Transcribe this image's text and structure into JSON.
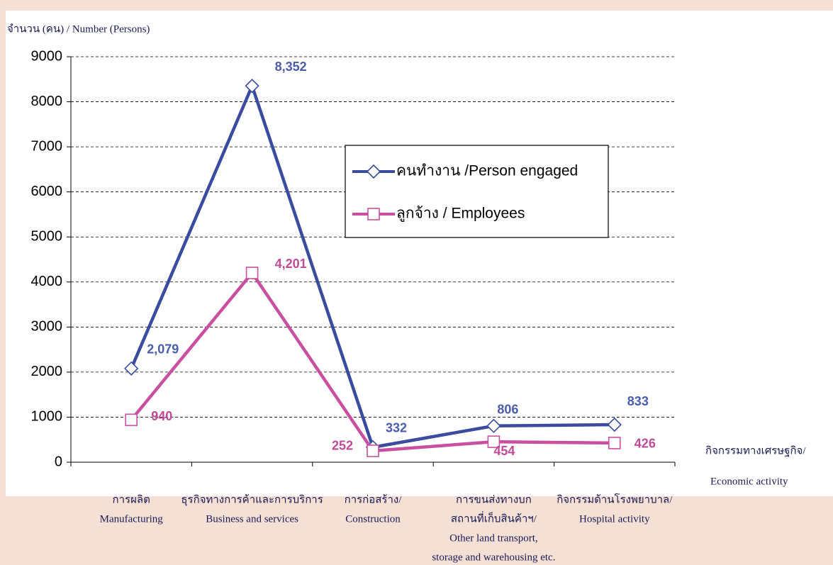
{
  "chart_data": {
    "type": "line",
    "y_label": "จำนวน (คน) / Number (Persons)",
    "x_label": [
      "กิจกรรมทางเศรษฐกิจ/",
      "Economic activity"
    ],
    "categories": [
      [
        "การผลิต",
        "Manufacturing"
      ],
      [
        "ธุรกิจทางการค้าและการบริการ",
        "Business and services"
      ],
      [
        "การก่อสร้าง/",
        "Construction"
      ],
      [
        "การขนส่งทางบก",
        "สถานที่เก็บสินค้าฯ/",
        "Other land transport,",
        "storage and warehousing etc."
      ],
      [
        "กิจกรรมด้านโรงพยาบาล/",
        "Hospital activity"
      ]
    ],
    "series": [
      {
        "name": "คนทำงาน /Person engaged",
        "color": "#3b4ba0",
        "marker": "diamond",
        "values": [
          2079,
          8352,
          332,
          806,
          833
        ],
        "value_labels": [
          "2,079",
          "8,352",
          "332",
          "806",
          "833"
        ]
      },
      {
        "name": "ลูกจ้าง / Employees",
        "color": "#c94fa0",
        "marker": "square",
        "values": [
          940,
          4201,
          252,
          454,
          426
        ],
        "value_labels": [
          "940",
          "4,201",
          "252",
          "454",
          "426"
        ]
      }
    ],
    "ylim": [
      0,
      9000
    ],
    "yticks": [
      0,
      1000,
      2000,
      3000,
      4000,
      5000,
      6000,
      7000,
      8000,
      9000
    ],
    "grid": true
  }
}
